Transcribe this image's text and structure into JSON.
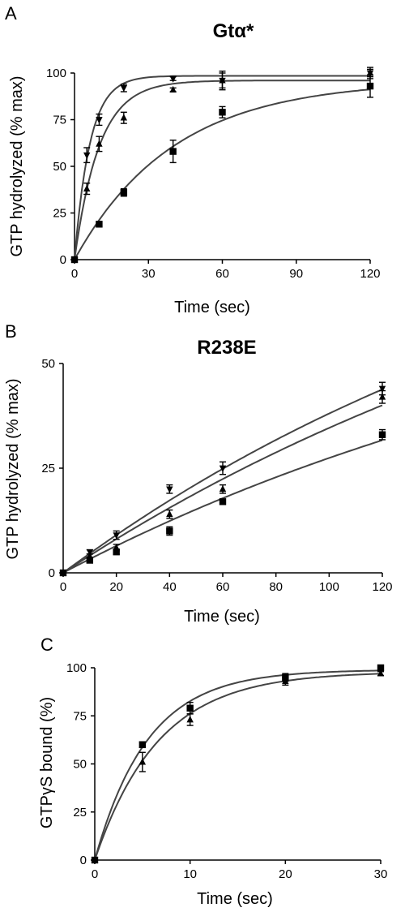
{
  "chart_data": [
    {
      "type": "scatter",
      "panel_label": "A",
      "title": "Gtα*",
      "xlabel": "Time (sec)",
      "ylabel": "GTP hydrolyzed (% max)",
      "xlim": [
        0,
        120
      ],
      "ylim": [
        0,
        100
      ],
      "xticks": [
        "0",
        "30",
        "60",
        "90",
        "120"
      ],
      "yticks": [
        "0",
        "25",
        "50",
        "75",
        "100"
      ],
      "grid": false,
      "legend": "none",
      "series": [
        {
          "marker": "triangle-down",
          "fit": {
            "plateau": 98.5,
            "k": 0.16
          },
          "x": [
            0,
            5,
            10,
            20,
            40,
            60,
            120
          ],
          "y": [
            0,
            56,
            75,
            92,
            97,
            96,
            100
          ],
          "err": [
            0,
            4,
            3,
            2,
            1,
            4,
            3
          ]
        },
        {
          "marker": "triangle-up",
          "fit": {
            "plateau": 96,
            "k": 0.1
          },
          "x": [
            0,
            5,
            10,
            20,
            40,
            60,
            120
          ],
          "y": [
            0,
            38,
            62,
            76,
            91,
            96,
            100
          ],
          "err": [
            0,
            3,
            4,
            3,
            1,
            5,
            2
          ]
        },
        {
          "marker": "square",
          "fit": {
            "plateau": 96,
            "k": 0.025
          },
          "x": [
            0,
            10,
            20,
            40,
            60,
            120
          ],
          "y": [
            0,
            19,
            36,
            58,
            79,
            93
          ],
          "err": [
            0,
            1,
            2,
            6,
            3,
            6
          ]
        }
      ]
    },
    {
      "type": "scatter",
      "panel_label": "B",
      "title": "R238E",
      "xlabel": "Time (sec)",
      "ylabel": "GTP hydrolyzed (% max)",
      "xlim": [
        0,
        120
      ],
      "ylim": [
        0,
        50
      ],
      "xticks": [
        "0",
        "20",
        "40",
        "60",
        "80",
        "100",
        "120"
      ],
      "yticks": [
        "0",
        "25",
        "50"
      ],
      "grid": false,
      "legend": "none",
      "series": [
        {
          "marker": "triangle-down",
          "fit": {
            "plateau": 105,
            "k": 0.0045
          },
          "x": [
            0,
            10,
            20,
            40,
            60,
            120
          ],
          "y": [
            0,
            5,
            9,
            20,
            25,
            44
          ],
          "err": [
            0,
            0.5,
            1,
            1,
            1.5,
            1.5
          ]
        },
        {
          "marker": "triangle-up",
          "fit": {
            "plateau": 105,
            "k": 0.004
          },
          "x": [
            0,
            10,
            20,
            40,
            60,
            120
          ],
          "y": [
            0,
            4,
            6,
            14,
            20,
            42
          ],
          "err": [
            0,
            0.5,
            0.8,
            1,
            1,
            1.5
          ]
        },
        {
          "marker": "square",
          "fit": {
            "plateau": 80,
            "k": 0.0042
          },
          "x": [
            0,
            10,
            20,
            40,
            60,
            120
          ],
          "y": [
            0,
            3,
            5,
            10,
            17,
            33
          ],
          "err": [
            0,
            0.5,
            0.5,
            1,
            0.5,
            1.2
          ]
        }
      ]
    },
    {
      "type": "scatter",
      "panel_label": "C",
      "title": "",
      "xlabel": "Time (sec)",
      "ylabel": "GTPγS  bound (%)",
      "xlim": [
        0,
        30
      ],
      "ylim": [
        0,
        100
      ],
      "xticks": [
        "0",
        "10",
        "20",
        "30"
      ],
      "yticks": [
        "0",
        "25",
        "50",
        "75",
        "100"
      ],
      "grid": false,
      "legend": "none",
      "series": [
        {
          "marker": "square",
          "fit": {
            "plateau": 99,
            "k": 0.18
          },
          "x": [
            0,
            5,
            10,
            20,
            30
          ],
          "y": [
            0,
            60,
            79,
            95,
            100
          ],
          "err": [
            0,
            1.5,
            3,
            2,
            1
          ]
        },
        {
          "marker": "triangle-up",
          "fit": {
            "plateau": 98,
            "k": 0.15
          },
          "x": [
            0,
            5,
            10,
            20,
            30
          ],
          "y": [
            0,
            51,
            73,
            93,
            97
          ],
          "err": [
            0,
            5,
            3,
            2,
            1
          ]
        }
      ]
    }
  ]
}
